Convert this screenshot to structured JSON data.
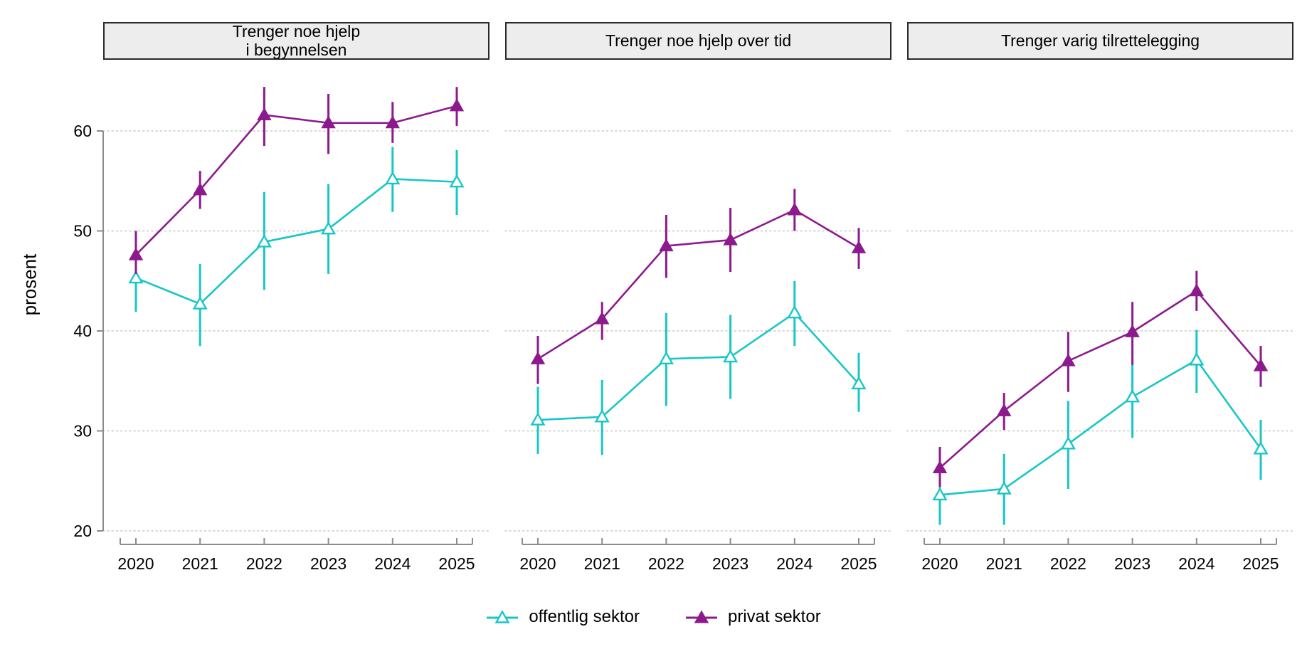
{
  "figure": {
    "y_axis_label": "prosent",
    "legend": [
      {
        "label": "offentlig sektor",
        "color": "#19C6C6",
        "marker": "open-triangle"
      },
      {
        "label": "privat sektor",
        "color": "#8C1A8C",
        "marker": "filled-triangle"
      }
    ],
    "colors": {
      "grid": "#D6D6D6",
      "axis": "#8C8C8C",
      "strip_background": "#EDEDED",
      "strip_border": "#2A2A2A",
      "text": "#000000"
    }
  },
  "chart_data": {
    "type": "line",
    "x": [
      2020,
      2021,
      2022,
      2023,
      2024,
      2025
    ],
    "x_tick_labels": [
      "2020",
      "2021",
      "2022",
      "2023",
      "2024",
      "2025"
    ],
    "ylabel": "prosent",
    "ylim": [
      18.5,
      66
    ],
    "yticks": [
      20,
      30,
      40,
      50,
      60
    ],
    "grid": "horizontal-dotted",
    "legend_position": "bottom-center",
    "error_bars": true,
    "facets": [
      {
        "title": "Trenger noe hjelp\ni begynnelsen",
        "series": [
          {
            "name": "offentlig sektor",
            "values": [
              45.3,
              42.7,
              48.9,
              50.2,
              55.2,
              54.9
            ],
            "ci_low": [
              41.9,
              38.5,
              44.1,
              45.7,
              51.9,
              51.6
            ],
            "ci_high": [
              46.8,
              46.7,
              53.9,
              54.7,
              58.4,
              58.1
            ]
          },
          {
            "name": "privat sektor",
            "values": [
              47.6,
              54.1,
              61.6,
              60.8,
              60.8,
              62.5
            ],
            "ci_low": [
              45.7,
              52.2,
              58.5,
              57.7,
              58.8,
              60.5
            ],
            "ci_high": [
              50.0,
              56.0,
              64.4,
              63.7,
              62.9,
              64.4
            ]
          }
        ]
      },
      {
        "title": "Trenger noe hjelp over tid",
        "series": [
          {
            "name": "offentlig sektor",
            "values": [
              31.1,
              31.4,
              37.2,
              37.4,
              41.8,
              34.7
            ],
            "ci_low": [
              27.7,
              27.6,
              32.5,
              33.2,
              38.5,
              31.9
            ],
            "ci_high": [
              34.4,
              35.1,
              41.8,
              41.6,
              45.0,
              37.8
            ]
          },
          {
            "name": "privat sektor",
            "values": [
              37.2,
              41.2,
              48.5,
              49.1,
              52.1,
              48.3
            ],
            "ci_low": [
              34.7,
              39.1,
              45.3,
              45.9,
              50.0,
              46.2
            ],
            "ci_high": [
              39.5,
              42.9,
              51.6,
              52.3,
              54.2,
              50.3
            ]
          }
        ]
      },
      {
        "title": "Trenger varig tilrettelegging",
        "series": [
          {
            "name": "offentlig sektor",
            "values": [
              23.6,
              24.2,
              28.7,
              33.4,
              37.1,
              28.2
            ],
            "ci_low": [
              20.6,
              20.6,
              24.2,
              29.3,
              33.8,
              25.1
            ],
            "ci_high": [
              25.1,
              27.7,
              33.0,
              36.8,
              40.1,
              31.1
            ]
          },
          {
            "name": "privat sektor",
            "values": [
              26.3,
              32.0,
              37.0,
              39.9,
              44.0,
              36.5
            ],
            "ci_low": [
              24.4,
              30.1,
              33.9,
              36.6,
              42.0,
              34.4
            ],
            "ci_high": [
              28.4,
              33.8,
              39.9,
              42.9,
              46.0,
              38.5
            ]
          }
        ]
      }
    ]
  }
}
